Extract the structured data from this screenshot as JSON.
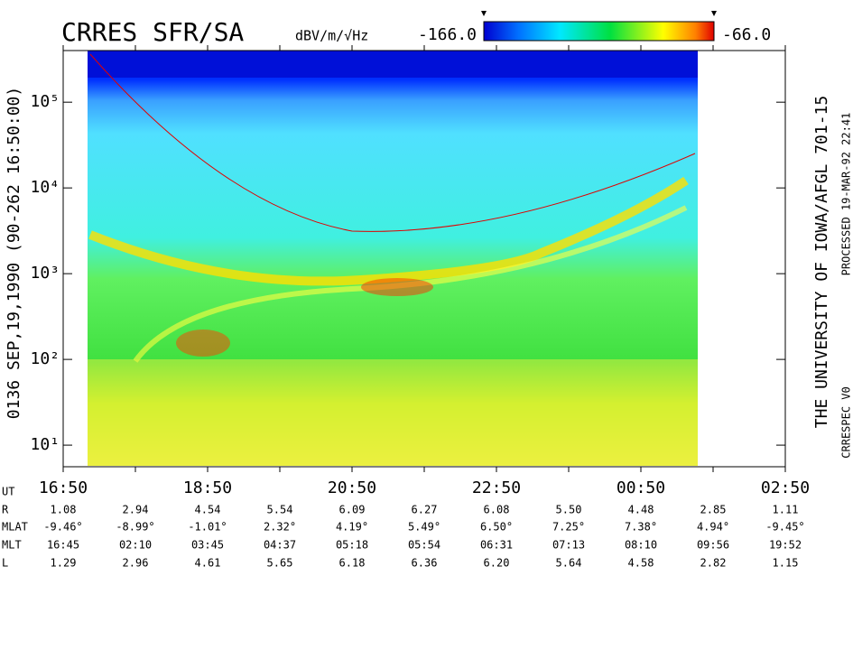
{
  "chart_data": {
    "type": "spectrogram",
    "title": "CRRES SFR/SA",
    "colorbar_label": "dBV/m/√Hz",
    "zlim": [
      {
        "value": -166,
        "label": "-166.0"
      },
      {
        "value": -66,
        "label": "-66.0"
      }
    ],
    "y_label": "0136  SEP,19,1990  (90-262 16:50:00)",
    "credit": "THE UNIVERSITY OF IOWA/AFGL 701-15",
    "processed": "PROCESSED 19-MAR-92  22:41",
    "version": "CRRESPEC V0",
    "log_y": true,
    "ylim": [
      5.6,
      400000
    ],
    "yticks": [
      {
        "value": 10,
        "label": "10¹"
      },
      {
        "value": 100,
        "label": "10²"
      },
      {
        "value": 1000,
        "label": "10³"
      },
      {
        "value": 10000,
        "label": "10⁴"
      },
      {
        "value": 100000,
        "label": "10⁵"
      }
    ],
    "x_label": "UT",
    "categories": [
      "16:50",
      null,
      "18:50",
      null,
      "20:50",
      null,
      "22:50",
      null,
      "00:50",
      null,
      "02:50"
    ],
    "ephemeris": [
      {
        "name": "R",
        "values": [
          "1.08",
          "2.94",
          "4.54",
          "5.54",
          "6.09",
          "6.27",
          "6.08",
          "5.50",
          "4.48",
          "2.85",
          "1.11"
        ]
      },
      {
        "name": "MLAT",
        "values": [
          "-9.46°",
          "-8.99°",
          "-1.01°",
          "2.32°",
          "4.19°",
          "5.49°",
          "6.50°",
          "7.25°",
          "7.38°",
          "4.94°",
          "-9.45°"
        ]
      },
      {
        "name": "MLT",
        "values": [
          "16:45",
          "02:10",
          "03:45",
          "04:37",
          "05:18",
          "05:54",
          "06:31",
          "07:13",
          "08:10",
          "09:56",
          "19:52"
        ]
      },
      {
        "name": "L",
        "values": [
          "1.29",
          "2.96",
          "4.61",
          "5.65",
          "6.18",
          "6.36",
          "6.20",
          "5.64",
          "4.58",
          "2.82",
          "1.15"
        ]
      }
    ]
  }
}
